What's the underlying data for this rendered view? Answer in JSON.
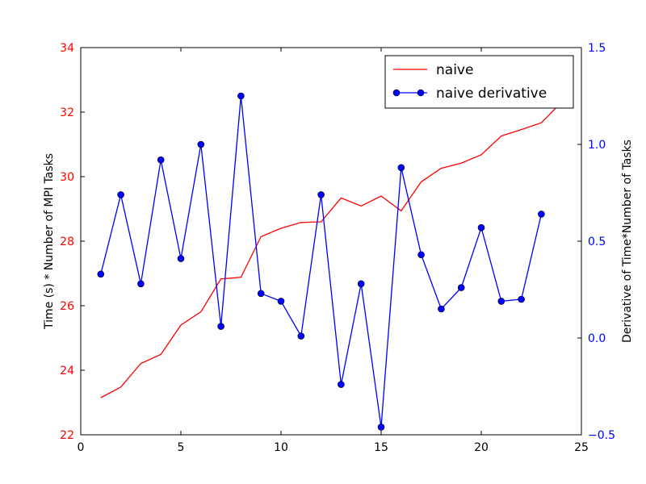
{
  "chart_data": {
    "type": "line",
    "title": "",
    "xlabel": "",
    "xlim": [
      0,
      25
    ],
    "x_ticks": [
      "0",
      "5",
      "10",
      "15",
      "20",
      "25"
    ],
    "grid": false,
    "legend_position": "top-right",
    "left_axis": {
      "label": "Time (s) * Number of MPI Tasks",
      "ylim": [
        22,
        34
      ],
      "ticks": [
        "22",
        "24",
        "26",
        "28",
        "30",
        "32",
        "34"
      ],
      "tick_color": "#ff0000"
    },
    "right_axis": {
      "label": "Derivative of Time*Number of Tasks",
      "ylim": [
        -0.5,
        1.5
      ],
      "ticks": [
        "−0.5",
        "0.0",
        "0.5",
        "1.0",
        "1.5"
      ],
      "tick_color": "#0000ff"
    },
    "series": [
      {
        "name": "naive",
        "axis": "left",
        "color": "#ff0000",
        "marker": "none",
        "x": [
          1,
          2,
          3,
          4,
          5,
          6,
          7,
          8,
          9,
          10,
          11,
          12,
          13,
          14,
          15,
          16,
          17,
          18,
          19,
          20,
          21,
          22,
          23,
          24
        ],
        "y": [
          23.15,
          23.48,
          24.21,
          24.49,
          25.4,
          25.81,
          26.83,
          26.88,
          28.14,
          28.4,
          28.58,
          28.6,
          29.34,
          29.09,
          29.4,
          28.94,
          29.84,
          30.26,
          30.42,
          30.68,
          31.26,
          31.46,
          31.67,
          32.3
        ]
      },
      {
        "name": "naive derivative",
        "axis": "right",
        "color": "#0000ff",
        "marker": "circle",
        "x": [
          1,
          2,
          3,
          4,
          5,
          6,
          7,
          8,
          9,
          10,
          11,
          12,
          13,
          14,
          15,
          16,
          17,
          18,
          19,
          20,
          21,
          22,
          23
        ],
        "y": [
          0.33,
          0.74,
          0.28,
          0.92,
          0.41,
          1.0,
          0.06,
          1.25,
          0.23,
          0.19,
          0.01,
          0.74,
          -0.24,
          0.28,
          -0.46,
          0.88,
          0.43,
          0.15,
          0.26,
          0.57,
          0.19,
          0.2,
          0.64
        ]
      }
    ]
  }
}
